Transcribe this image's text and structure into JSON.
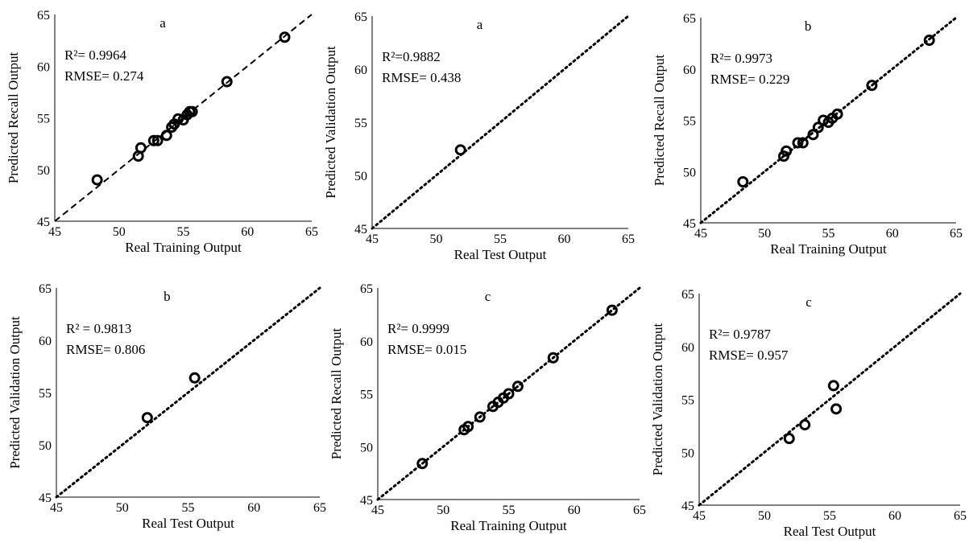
{
  "chart_data": [
    {
      "type": "scatter",
      "tag": "a",
      "xlabel": "Real Training Output",
      "ylabel": "Predicted Recall Output",
      "xlim": [
        45,
        65
      ],
      "ylim": [
        45,
        65
      ],
      "ticks": [
        "45",
        "50",
        "55",
        "60",
        "65"
      ],
      "r2_label": "R²= 0.9964",
      "rmse_label": "RMSE= 0.274",
      "fit_line_style": "dashed",
      "x": [
        48.3,
        51.5,
        51.7,
        52.7,
        53.0,
        53.7,
        54.1,
        54.3,
        54.6,
        55.0,
        55.3,
        55.5,
        55.7,
        58.4,
        62.9
      ],
      "y": [
        49.0,
        51.3,
        52.1,
        52.8,
        52.8,
        53.3,
        54.1,
        54.4,
        54.9,
        54.8,
        55.3,
        55.6,
        55.6,
        58.5,
        62.8
      ]
    },
    {
      "type": "scatter",
      "tag": "a",
      "xlabel": "Real Test Output",
      "ylabel": "Predicted Validation Output",
      "xlim": [
        45,
        65
      ],
      "ylim": [
        45,
        65
      ],
      "ticks": [
        "45",
        "50",
        "55",
        "60",
        "65"
      ],
      "r2_label": "R²=0.9882",
      "rmse_label": "RMSE= 0.438",
      "fit_line_style": "dotted",
      "x": [
        51.9
      ],
      "y": [
        52.4
      ]
    },
    {
      "type": "scatter",
      "tag": "b",
      "xlabel": "Real Training Output",
      "ylabel": "Predicted Recall Output",
      "xlim": [
        45,
        65
      ],
      "ylim": [
        45,
        65
      ],
      "ticks": [
        "45",
        "50",
        "55",
        "60",
        "65"
      ],
      "r2_label": "R²= 0.9973",
      "rmse_label": "RMSE= 0.229",
      "fit_line_style": "dotted",
      "x": [
        48.3,
        51.5,
        51.7,
        52.6,
        53.0,
        53.8,
        54.2,
        54.6,
        55.0,
        55.3,
        55.7,
        58.4,
        62.9
      ],
      "y": [
        49.0,
        51.5,
        52.0,
        52.8,
        52.8,
        53.6,
        54.3,
        55.0,
        54.8,
        55.2,
        55.6,
        58.4,
        62.8
      ]
    },
    {
      "type": "scatter",
      "tag": "b",
      "xlabel": "Real Test Output",
      "ylabel": "Predicted Validation Output",
      "xlim": [
        45,
        65
      ],
      "ylim": [
        45,
        65
      ],
      "ticks": [
        "45",
        "50",
        "55",
        "60",
        "65"
      ],
      "r2_label": "R² = 0.9813",
      "rmse_label": "RMSE= 0.806",
      "fit_line_style": "dotted",
      "x": [
        51.9,
        55.5
      ],
      "y": [
        52.6,
        56.4
      ]
    },
    {
      "type": "scatter",
      "tag": "c",
      "xlabel": "Real Training Output",
      "ylabel": "Predicted Recall Output",
      "xlim": [
        45,
        65
      ],
      "ylim": [
        45,
        65
      ],
      "ticks": [
        "45",
        "50",
        "55",
        "60",
        "65"
      ],
      "r2_label": "R²= 0.9999",
      "rmse_label": "RMSE= 0.015",
      "fit_line_style": "dotted",
      "x": [
        48.4,
        51.6,
        51.9,
        52.8,
        53.8,
        54.2,
        54.6,
        55.0,
        55.7,
        58.4,
        62.9
      ],
      "y": [
        48.4,
        51.6,
        51.9,
        52.8,
        53.8,
        54.2,
        54.6,
        55.0,
        55.7,
        58.4,
        62.9
      ]
    },
    {
      "type": "scatter",
      "tag": "c",
      "xlabel": "Real Test Output",
      "ylabel": "Predicted Validation Output",
      "xlim": [
        45,
        65
      ],
      "ylim": [
        45,
        65
      ],
      "ticks": [
        "45",
        "50",
        "55",
        "60",
        "65"
      ],
      "r2_label": "R²= 0.9787",
      "rmse_label": "RMSE= 0.957",
      "fit_line_style": "dotted",
      "x": [
        51.9,
        53.1,
        55.3,
        55.5
      ],
      "y": [
        51.3,
        52.6,
        56.3,
        54.1
      ]
    }
  ]
}
